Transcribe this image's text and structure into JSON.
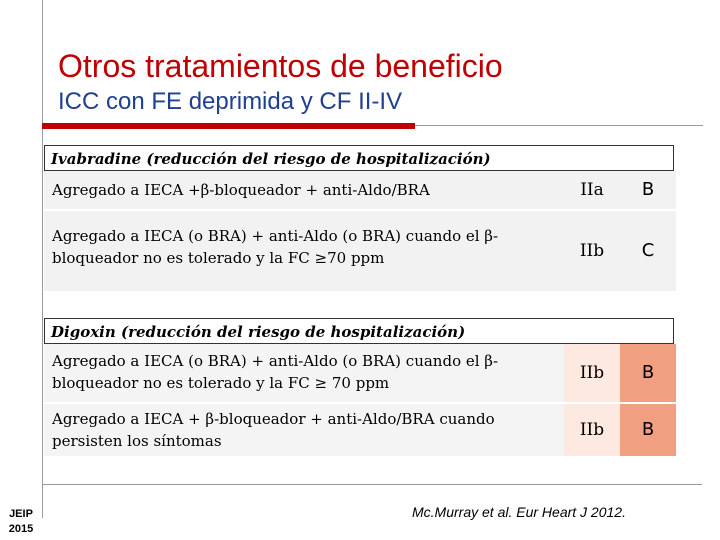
{
  "slide": {
    "title": "Otros tratamientos de beneficio",
    "subtitle": "ICC con FE deprimida y CF II-IV",
    "footer_left_line1": "JEIP",
    "footer_left_line2": "2015",
    "citation": "Mc.Murray et al. Eur Heart J 2012.",
    "colors": {
      "title": "#c00000",
      "subtitle": "#1f3f8f",
      "lvl_b_fill": "#f0a080"
    }
  },
  "ivabradine": {
    "header": "Ivabradine  (reducción del riesgo de hospitalización)",
    "rows": [
      {
        "text": "Agregado a IECA +β-bloqueador + anti-Aldo/BRA",
        "class": "IIa",
        "level": "B"
      },
      {
        "text": "Agregado a IECA (o BRA) + anti-Aldo (o BRA) cuando el β-bloqueador no es tolerado y la FC ≥70 ppm",
        "class": "IIb",
        "level": "C"
      }
    ]
  },
  "digoxin": {
    "header": "Digoxin (reducción del riesgo de hospitalización)",
    "rows": [
      {
        "text": "Agregado a IECA (o BRA) + anti-Aldo (o BRA) cuando el β- bloqueador no es tolerado y la FC ≥ 70 ppm",
        "class": "IIb",
        "level": "B"
      },
      {
        "text": "Agregado a IECA + β-bloqueador + anti-Aldo/BRA cuando persisten los síntomas",
        "class": "IIb",
        "level": "B"
      }
    ]
  }
}
